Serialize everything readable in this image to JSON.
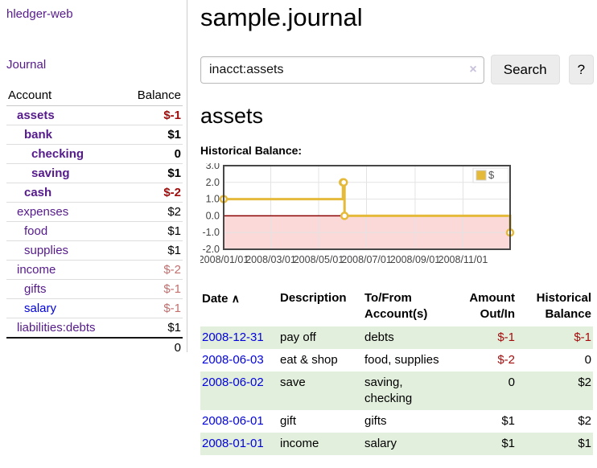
{
  "app": {
    "title": "hledger-web"
  },
  "sidebar": {
    "nav": {
      "journal_label": "Journal"
    },
    "accounts": {
      "headers": {
        "account": "Account",
        "balance": "Balance"
      },
      "rows": [
        {
          "name": "assets",
          "level": 1,
          "bold": true,
          "link": "purple",
          "balance": "$-1",
          "balance_class": "strong-neg"
        },
        {
          "name": "bank",
          "level": 2,
          "bold": true,
          "link": "purple",
          "balance": "$1",
          "balance_class": "strong"
        },
        {
          "name": "checking",
          "level": 3,
          "bold": true,
          "link": "purple",
          "balance": "0",
          "balance_class": "strong"
        },
        {
          "name": "saving",
          "level": 3,
          "bold": true,
          "link": "purple",
          "balance": "$1",
          "balance_class": "strong"
        },
        {
          "name": "cash",
          "level": 2,
          "bold": true,
          "link": "purple",
          "balance": "$-2",
          "balance_class": "strong-neg"
        },
        {
          "name": "expenses",
          "level": 1,
          "bold": false,
          "link": "purple",
          "balance": "$2",
          "balance_class": "plain"
        },
        {
          "name": "food",
          "level": 2,
          "bold": false,
          "link": "purple",
          "balance": "$1",
          "balance_class": "plain"
        },
        {
          "name": "supplies",
          "level": 2,
          "bold": false,
          "link": "purple",
          "balance": "$1",
          "balance_class": "plain"
        },
        {
          "name": "income",
          "level": 1,
          "bold": false,
          "link": "purple",
          "balance": "$-2",
          "balance_class": "muted-neg"
        },
        {
          "name": "gifts",
          "level": 2,
          "bold": false,
          "link": "purple",
          "balance": "$-1",
          "balance_class": "muted-neg"
        },
        {
          "name": "salary",
          "level": 2,
          "bold": false,
          "link": "blue",
          "balance": "$-1",
          "balance_class": "muted-neg"
        },
        {
          "name": "liabilities:debts",
          "level": 1,
          "bold": false,
          "link": "purple",
          "balance": "$1",
          "balance_class": "plain"
        }
      ],
      "total": "0"
    }
  },
  "main": {
    "title": "sample.journal",
    "search": {
      "value": "inacct:assets",
      "clear_icon": "×",
      "button_label": "Search",
      "help_label": "?"
    },
    "account_heading": "assets",
    "chart_label": "Historical Balance:"
  },
  "chart_data": {
    "type": "line",
    "step": true,
    "title": "Historical Balance:",
    "series": [
      {
        "name": "$",
        "color": "#e5ba3a",
        "points": [
          [
            "2008-01-01",
            1
          ],
          [
            "2008-06-01",
            2
          ],
          [
            "2008-06-02",
            2
          ],
          [
            "2008-06-03",
            0
          ],
          [
            "2008-12-31",
            -1
          ]
        ]
      }
    ],
    "x_range": [
      "2008-01-01",
      "2008-12-31"
    ],
    "ylim": [
      -2,
      3
    ],
    "y_ticks": [
      3.0,
      2.0,
      1.0,
      0.0,
      -1.0,
      -2.0
    ],
    "x_ticks": [
      "2008/01/01",
      "2008/03/01",
      "2008/05/01",
      "2008/07/01",
      "2008/09/01",
      "2008/11/01"
    ],
    "grid": true,
    "legend_position": "top-right",
    "legend_label": "$",
    "negative_fill": "#fbd9d9",
    "zero_line_color": "#8b0000"
  },
  "register": {
    "headers": {
      "date": "Date",
      "sort_icon": "∧",
      "description": "Description",
      "accounts": "To/From Account(s)",
      "amount": "Amount Out/In",
      "balance": "Historical Balance"
    },
    "rows": [
      {
        "date": "2008-12-31",
        "description": "pay off",
        "accounts": "debts",
        "amount": "$-1",
        "balance": "$-1"
      },
      {
        "date": "2008-06-03",
        "description": "eat & shop",
        "accounts": "food, supplies",
        "amount": "$-2",
        "balance": "0"
      },
      {
        "date": "2008-06-02",
        "description": "save",
        "accounts": "saving, checking",
        "amount": "0",
        "balance": "$2"
      },
      {
        "date": "2008-06-01",
        "description": "gift",
        "accounts": "gifts",
        "amount": "$1",
        "balance": "$2"
      },
      {
        "date": "2008-01-01",
        "description": "income",
        "accounts": "salary",
        "amount": "$1",
        "balance": "$1"
      }
    ]
  },
  "colors": {
    "link_purple": "#551a8b",
    "link_blue": "#0202dd",
    "negative_strong": "#9e0b0b",
    "negative_muted": "#c0706f",
    "register_negative": "#a40d0d",
    "row_green": "#e3efdd",
    "chart_line": "#e5ba3a",
    "chart_negative_region": "#fbd9d9",
    "chart_zero_line": "#8b0000"
  }
}
